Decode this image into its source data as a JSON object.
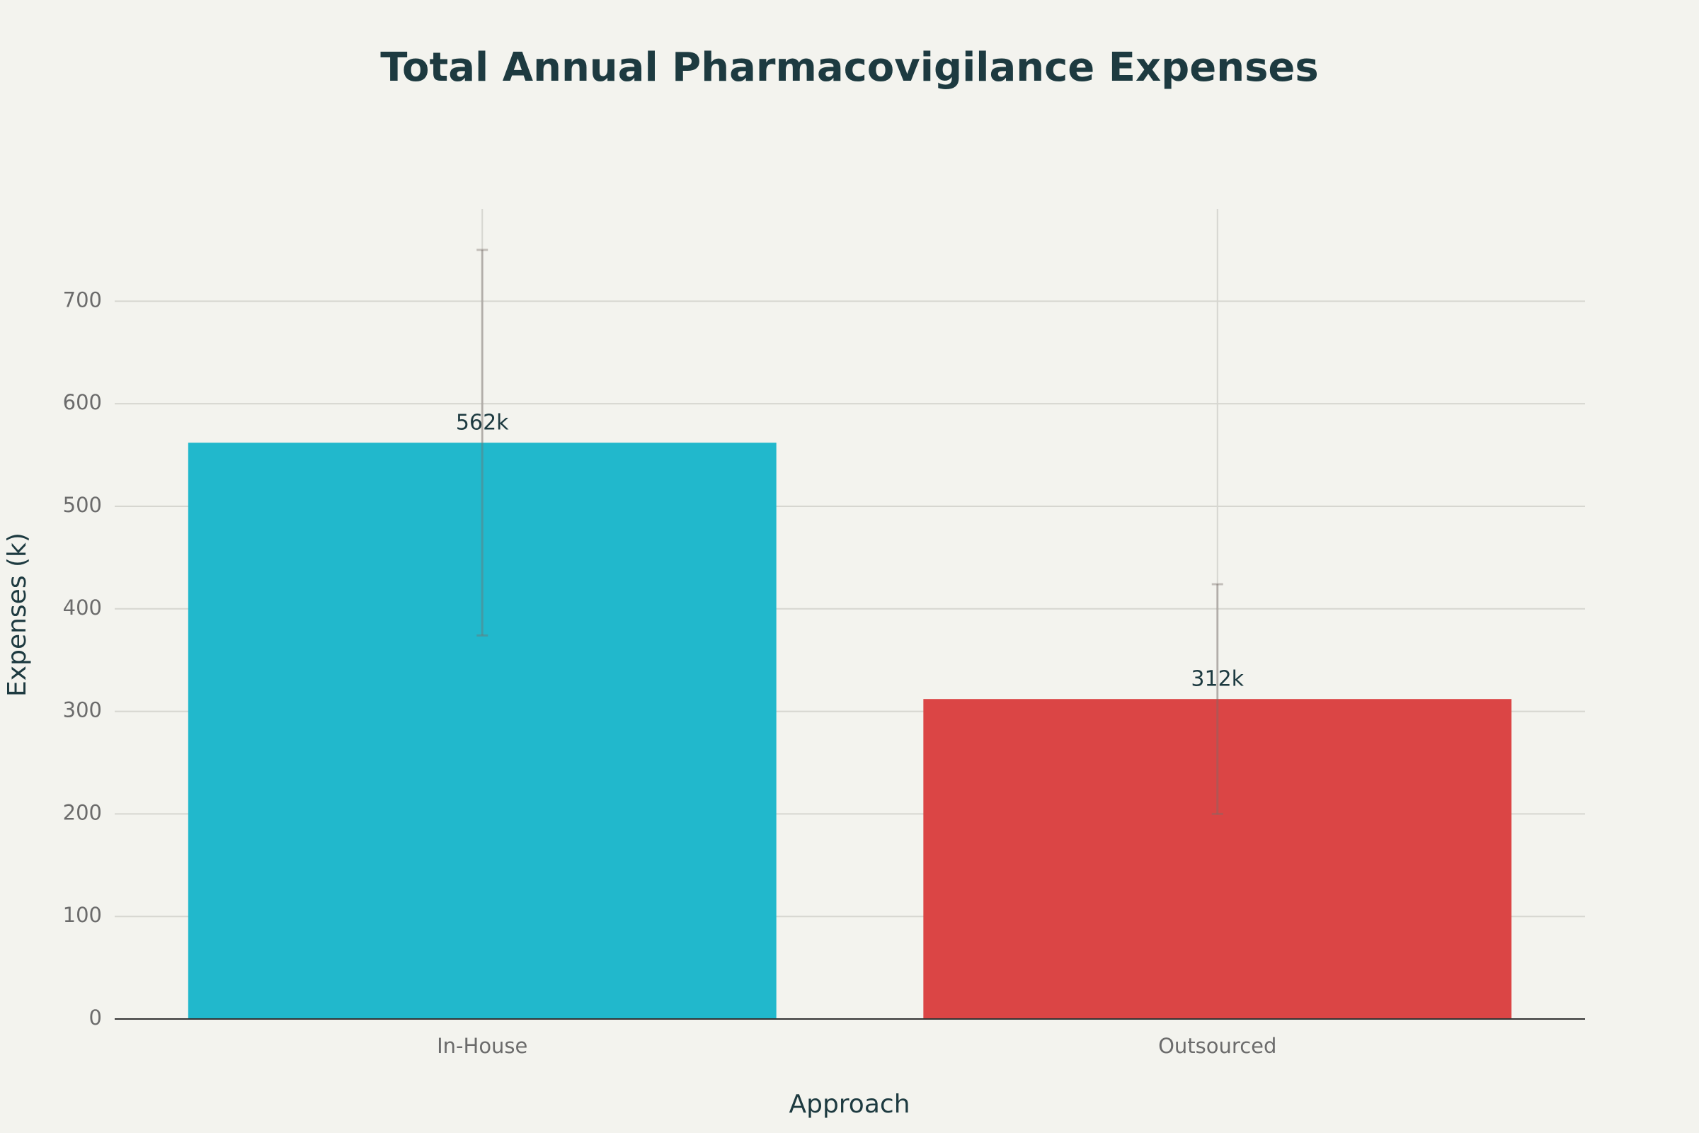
{
  "chart_data": {
    "type": "bar",
    "title": "Total Annual Pharmacovigilance Expenses",
    "x_label": "Approach",
    "y_label": "Expenses (k)",
    "categories": [
      "In-House",
      "Outsourced"
    ],
    "values": [
      562,
      312
    ],
    "value_labels": [
      "562k",
      "312k"
    ],
    "errors": [
      188,
      112
    ],
    "colors": [
      "#21b8cc",
      "#db4545"
    ],
    "ylim": [
      0,
      790
    ],
    "yticks": [
      0,
      100,
      200,
      300,
      400,
      500,
      600,
      700
    ],
    "grid": true
  }
}
